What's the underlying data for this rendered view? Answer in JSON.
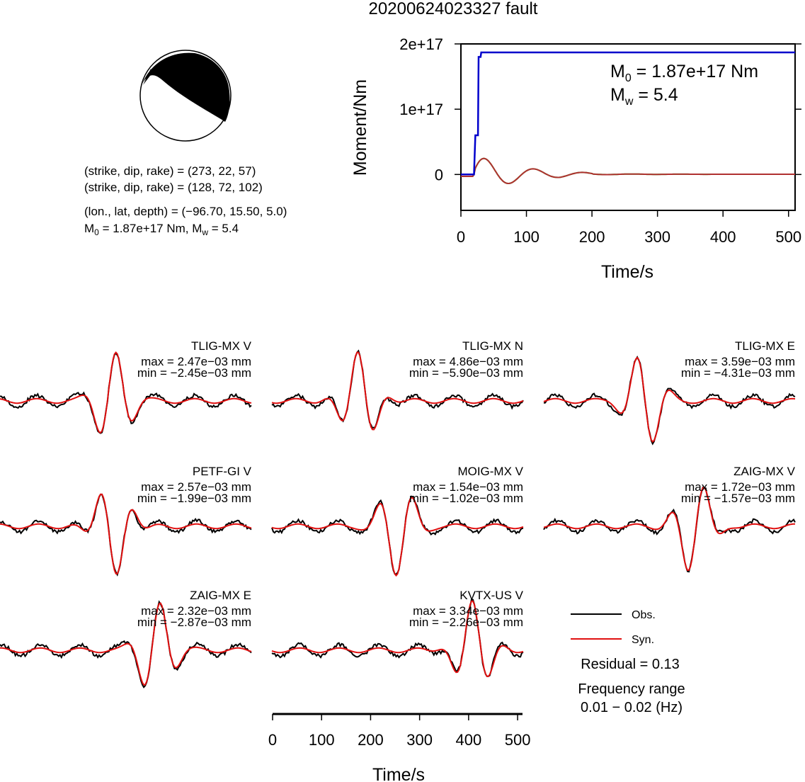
{
  "title": "20200624023327 fault",
  "colors": {
    "observed": "#000000",
    "synthetic": "#e01010",
    "moment_curve": "#0000cc",
    "stf_obs": "#b03030",
    "stf_green": "#22cc22"
  },
  "mechanism": {
    "line1_label": "(strike, dip, rake) = ",
    "line1_value": "(273, 22, 57)",
    "line2_label": "(strike, dip, rake) = ",
    "line2_value": "(128, 72, 102)",
    "location_label": "(lon., lat, depth) = ",
    "location_value": "(−96.70, 15.50, 5.0)",
    "moment_text": "M",
    "moment_sub": "0",
    "moment_value": " = 1.87e+17 Nm, M",
    "mw_sub": "w",
    "mw_value": " = 5.4"
  },
  "chart_data": [
    {
      "type": "line",
      "title": "",
      "xlabel": "Time/s",
      "ylabel": "Moment/Nm",
      "xlim": [
        0,
        510
      ],
      "ylim": [
        -55000000000000000,
        200000000000000000
      ],
      "x_ticks": [
        "0",
        "100",
        "200",
        "300",
        "400",
        "500"
      ],
      "x_tick_values": [
        0,
        100,
        200,
        300,
        400,
        500
      ],
      "y_ticks": [
        "0",
        "1e+17",
        "2e+17"
      ],
      "y_tick_values": [
        0,
        100000000000000000,
        200000000000000000
      ],
      "annotations": {
        "m0_prefix": "M",
        "m0_sub": "0",
        "m0_value": " = 1.87e+17 Nm",
        "mw_prefix": "M",
        "mw_sub": "w",
        "mw_value": " = 5.4"
      },
      "series": [
        {
          "name": "",
          "color": "#0000cc",
          "x": [
            0,
            20,
            22,
            26,
            27,
            30,
            31,
            33,
            35,
            510
          ],
          "y": [
            0,
            0,
            60000000000000000,
            60000000000000000,
            180000000000000000,
            180000000000000000,
            187000000000000000,
            187000000000000000,
            187000000000000000,
            187000000000000000
          ]
        }
      ]
    }
  ],
  "waveforms": {
    "legend_obs": "Obs.",
    "legend_syn": "Syn.",
    "residual": "Residual = 0.13",
    "freq_label": "Frequency range",
    "freq_value": "0.01 − 0.02 (Hz)",
    "time_axis_label": "Time/s",
    "time_ticks": [
      "0",
      "100",
      "200",
      "300",
      "400",
      "500"
    ],
    "time_tick_values": [
      0,
      100,
      200,
      300,
      400,
      500
    ],
    "traces": [
      {
        "station": "TLIG-MX V",
        "max": "max = 2.47e−03 mm",
        "min": "min = −2.45e−03 mm"
      },
      {
        "station": "TLIG-MX N",
        "max": "max = 4.86e−03 mm",
        "min": "min = −5.90e−03 mm"
      },
      {
        "station": "TLIG-MX E",
        "max": "max = 3.59e−03 mm",
        "min": "min = −4.31e−03 mm"
      },
      {
        "station": "PETF-GI V",
        "max": "max = 2.57e−03 mm",
        "min": "min = −1.99e−03 mm"
      },
      {
        "station": "MOIG-MX V",
        "max": "max = 1.54e−03 mm",
        "min": "min = −1.02e−03 mm"
      },
      {
        "station": "ZAIG-MX V",
        "max": "max = 1.72e−03 mm",
        "min": "min = −1.57e−03 mm"
      },
      {
        "station": "ZAIG-MX E",
        "max": "max = 2.32e−03 mm",
        "min": "min = −2.87e−03 mm"
      },
      {
        "station": "KVTX-US V",
        "max": "max = 3.34e−03 mm",
        "min": "min = −2.26e−03 mm"
      }
    ]
  }
}
